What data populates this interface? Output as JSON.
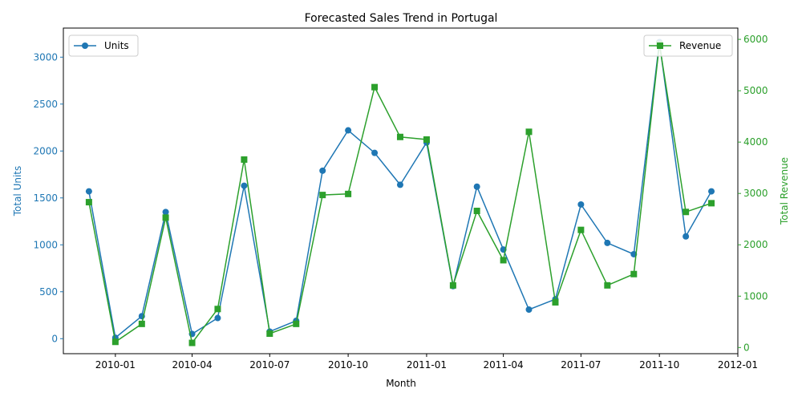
{
  "chart_data": {
    "type": "line",
    "title": "Forecasted Sales Trend in Portugal",
    "xlabel": "Month",
    "ylabel_left": "Total Units",
    "ylabel_right": "Total Revenue",
    "x": [
      "2009-12-01",
      "2010-01-01",
      "2010-02-01",
      "2010-03-01",
      "2010-04-01",
      "2010-05-01",
      "2010-06-01",
      "2010-07-01",
      "2010-08-01",
      "2010-09-01",
      "2010-10-01",
      "2010-11-01",
      "2010-12-01",
      "2011-01-01",
      "2011-02-01",
      "2011-03-01",
      "2011-04-01",
      "2011-05-01",
      "2011-06-01",
      "2011-07-01",
      "2011-08-01",
      "2011-09-01",
      "2011-10-01",
      "2011-11-01",
      "2011-12-01"
    ],
    "x_ticks": [
      "2010-01",
      "2010-04",
      "2010-07",
      "2010-10",
      "2011-01",
      "2011-04",
      "2011-07",
      "2011-10",
      "2012-01"
    ],
    "x_tick_dates": [
      "2010-01-01",
      "2010-04-01",
      "2010-07-01",
      "2010-10-01",
      "2011-01-01",
      "2011-04-01",
      "2011-07-01",
      "2011-10-01",
      "2012-01-01"
    ],
    "xlim": [
      "2009-11-01",
      "2012-01-01"
    ],
    "ylim_left": [
      -160,
      3310
    ],
    "yticks_left": [
      0,
      500,
      1000,
      1500,
      2000,
      2500,
      3000
    ],
    "ylim_right": [
      -120,
      6220
    ],
    "yticks_right": [
      0,
      1000,
      2000,
      3000,
      4000,
      5000,
      6000
    ],
    "series": [
      {
        "name": "Units",
        "axis": "left",
        "color": "#1f77b4",
        "marker": "circle",
        "values": [
          1570,
          10,
          240,
          1350,
          50,
          220,
          1630,
          75,
          190,
          1790,
          2220,
          1980,
          1640,
          2090,
          560,
          1620,
          950,
          310,
          420,
          1430,
          1020,
          900,
          3160,
          1090,
          1570
        ]
      },
      {
        "name": "Revenue",
        "axis": "right",
        "color": "#2ca02c",
        "marker": "square",
        "values": [
          2830,
          110,
          460,
          2530,
          90,
          750,
          3660,
          270,
          460,
          2970,
          2990,
          5070,
          4100,
          4050,
          1210,
          2660,
          1700,
          4200,
          880,
          2290,
          1210,
          1430,
          5910,
          2640,
          2810
        ]
      }
    ],
    "legend_left_placement": "upper-left",
    "legend_right_placement": "upper-right",
    "grid": false
  }
}
